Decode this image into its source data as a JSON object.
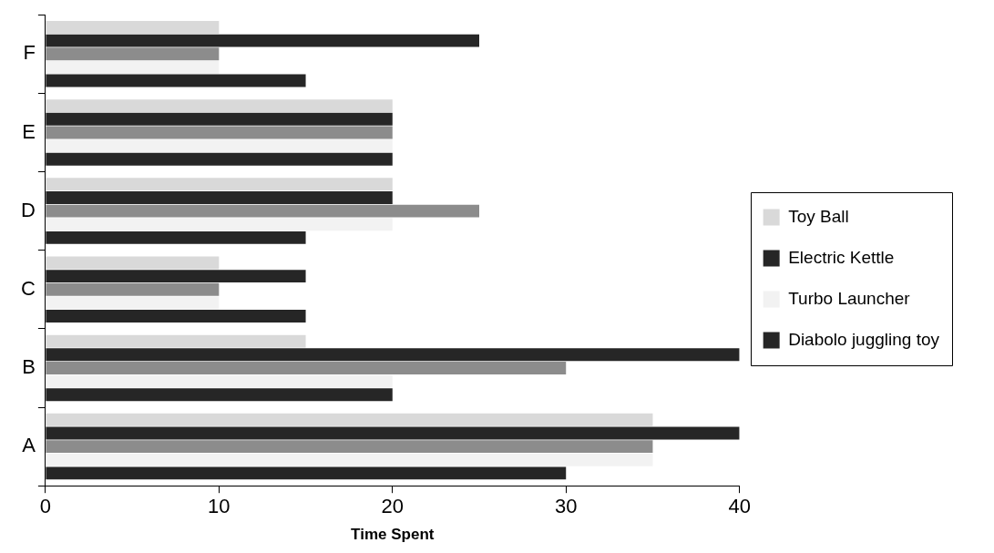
{
  "chart_data": {
    "type": "bar",
    "orientation": "horizontal",
    "xlabel": "Time Spent",
    "categories": [
      "F",
      "E",
      "D",
      "C",
      "B",
      "A"
    ],
    "series": [
      {
        "name": "Toy Ball",
        "color": "#d9d9d9",
        "values": [
          10,
          20,
          20,
          10,
          15,
          35
        ]
      },
      {
        "name": "Electric Kettle",
        "color": "#262626",
        "values": [
          25,
          20,
          20,
          15,
          40,
          40
        ]
      },
      {
        "color": "#8c8c8c",
        "values": [
          10,
          20,
          25,
          10,
          30,
          35
        ]
      },
      {
        "name": "Turbo Launcher",
        "color": "#f2f2f2",
        "values": [
          10,
          20,
          20,
          10,
          20,
          35
        ]
      },
      {
        "name": "Diabolo juggling toy",
        "color": "#262626",
        "values": [
          15,
          20,
          15,
          15,
          20,
          30
        ]
      }
    ],
    "xlim": [
      0,
      40
    ],
    "xticks": [
      0,
      10,
      20,
      30,
      40
    ],
    "grid": false,
    "legend": "right"
  }
}
